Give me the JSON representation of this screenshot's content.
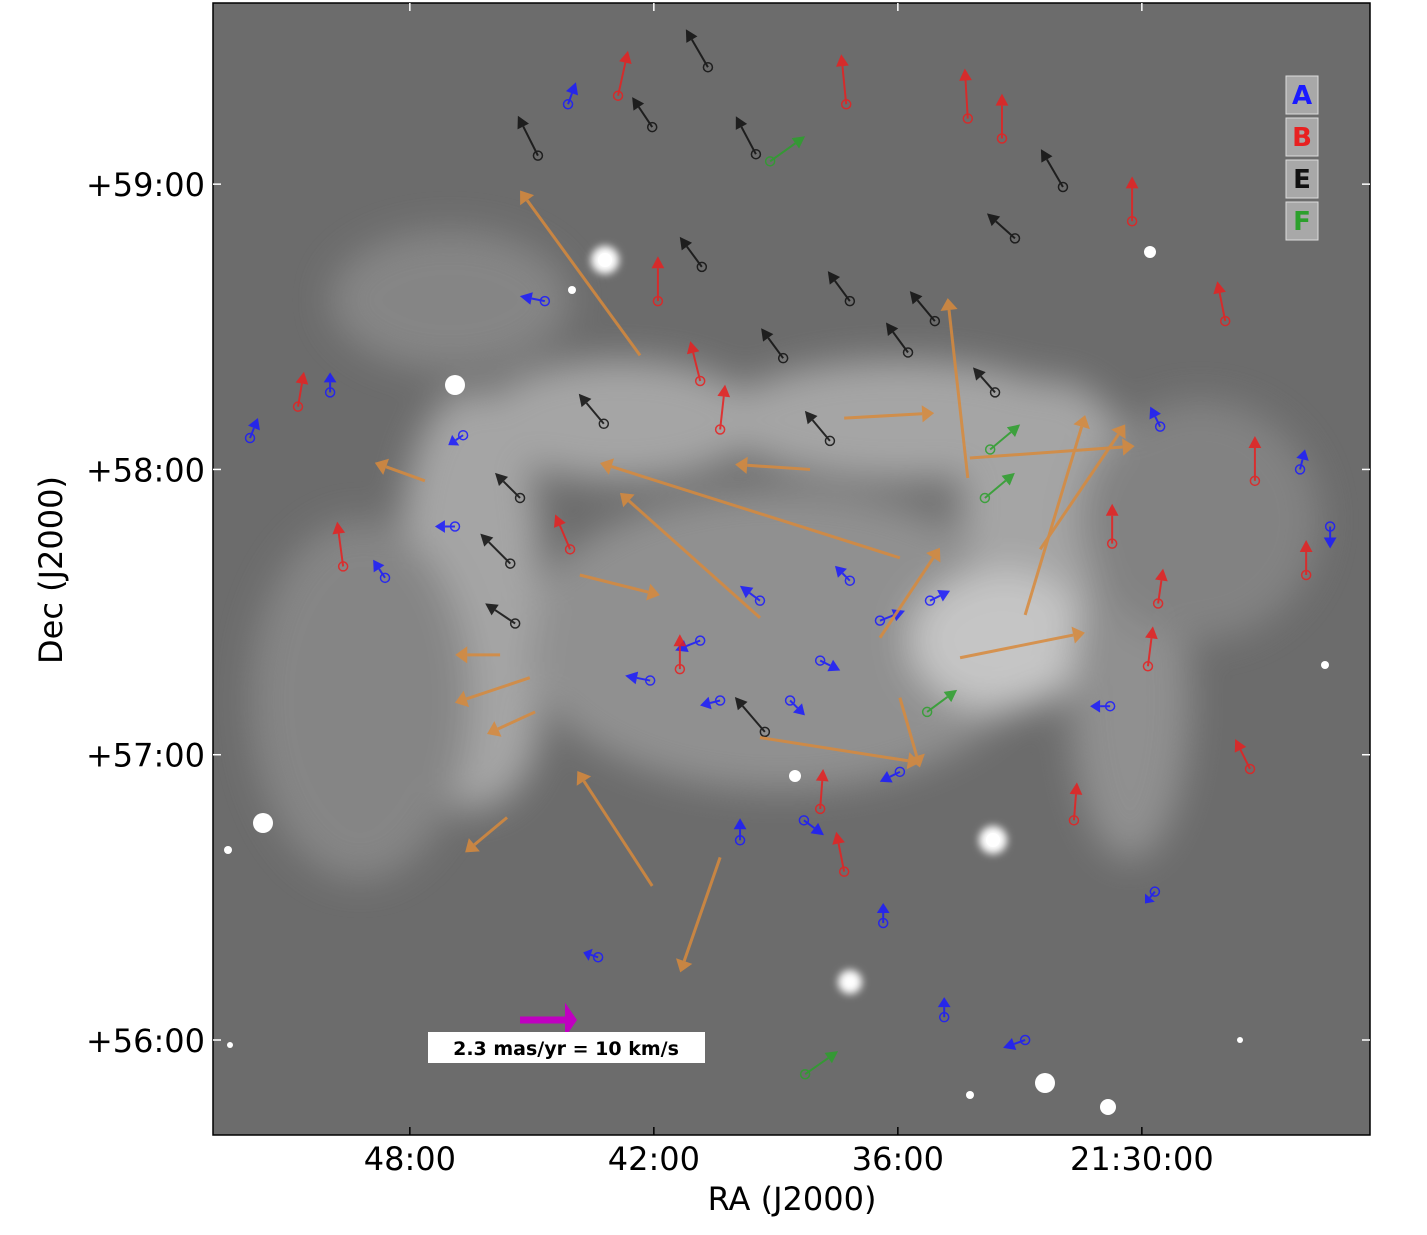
{
  "chart_data": {
    "type": "quiver",
    "xlabel": "RA (J2000)",
    "ylabel": "Dec (J2000)",
    "xlim": [
      52.84,
      24.39
    ],
    "ylim": [
      55.667,
      59.635
    ],
    "xticks": [
      {
        "value": 48,
        "label": "48:00"
      },
      {
        "value": 42,
        "label": "42:00"
      },
      {
        "value": 36,
        "label": "36:00"
      },
      {
        "value": 30,
        "label": "21:30:00"
      }
    ],
    "yticks": [
      {
        "value": 56,
        "label": "+56:00"
      },
      {
        "value": 57,
        "label": "+57:00"
      },
      {
        "value": 58,
        "label": "+58:00"
      },
      {
        "value": 59,
        "label": "+59:00"
      }
    ],
    "scale_arrow": {
      "value": 2.3,
      "label": "2.3 mas/yr = 10 km/s",
      "color": "#c000c0"
    },
    "series": [
      {
        "name": "A",
        "color": "#1a1aff",
        "tail_circle": true,
        "x": [
          51.93,
          49.96,
          44.11,
          44.68,
          46.69,
          48.61,
          46.89,
          43.37,
          34.86,
          32.87,
          40.86,
          39.39,
          37.91,
          36.44,
          42.09,
          35.95,
          30.78,
          29.55,
          26.11,
          25.37,
          29.68,
          39.88,
          38.31,
          36.36,
          40.37,
          37.18,
          35.21,
          38.65
        ],
        "y": [
          58.11,
          58.27,
          59.28,
          58.59,
          58.12,
          57.62,
          57.8,
          56.29,
          56.08,
          56.0,
          57.4,
          57.54,
          57.33,
          57.47,
          57.26,
          56.94,
          57.17,
          58.15,
          58.0,
          57.8,
          56.52,
          56.7,
          56.77,
          56.41,
          57.19,
          57.61,
          57.54,
          57.19
        ],
        "u": [
          0.32,
          0,
          0.32,
          -1.01,
          -0.6,
          -0.48,
          -0.81,
          -0.6,
          0,
          -0.89,
          -1.01,
          -0.81,
          0.81,
          1.01,
          -1.01,
          -0.81,
          -0.81,
          -0.4,
          0.2,
          0,
          -0.4,
          0,
          0.81,
          0,
          -0.81,
          -0.6,
          0.81,
          0.6
        ],
        "v": [
          0.81,
          0.81,
          0.89,
          0.2,
          -0.4,
          0.73,
          0,
          0.2,
          0.81,
          -0.32,
          -0.4,
          0.6,
          -0.4,
          0.4,
          0.2,
          -0.4,
          0,
          0.81,
          0.81,
          -0.89,
          -0.48,
          0.89,
          -0.6,
          0.81,
          -0.2,
          0.6,
          0.4,
          -0.6
        ]
      },
      {
        "name": "B",
        "color": "#e82020",
        "tail_circle": true,
        "x": [
          50.75,
          49.64,
          42.88,
          41.9,
          37.27,
          34.28,
          33.44,
          30.24,
          27.95,
          27.22,
          25.96,
          29.6,
          29.85,
          27.34,
          31.67,
          37.32,
          37.91,
          40.86,
          40.37,
          44.06,
          30.73,
          41.36
        ],
        "y": [
          58.22,
          57.66,
          59.31,
          58.59,
          59.28,
          59.23,
          59.16,
          58.87,
          58.52,
          57.96,
          57.63,
          57.53,
          57.31,
          56.95,
          56.77,
          56.59,
          56.81,
          58.31,
          58.14,
          57.72,
          57.74,
          57.3
        ],
        "u": [
          0.24,
          -0.24,
          0.4,
          0,
          -0.2,
          -0.12,
          0,
          0,
          -0.32,
          0,
          0,
          0.2,
          0.2,
          -0.6,
          0.12,
          -0.32,
          0.12,
          -0.4,
          0.2,
          -0.6,
          0,
          0
        ],
        "v": [
          1.41,
          1.81,
          1.81,
          1.81,
          2.02,
          2.02,
          1.81,
          1.81,
          1.61,
          1.81,
          1.41,
          1.41,
          1.61,
          1.21,
          1.53,
          1.61,
          1.61,
          1.61,
          1.81,
          1.41,
          1.61,
          1.41
        ]
      },
      {
        "name": "E",
        "color": "#111111",
        "tail_circle": true,
        "x": [
          40.67,
          44.85,
          42.04,
          39.49,
          31.94,
          33.12,
          40.82,
          38.82,
          35.75,
          43.23,
          37.67,
          33.61,
          45.41,
          45.53,
          45.29,
          39.27,
          35.09,
          37.18
        ],
        "y": [
          59.41,
          59.1,
          59.2,
          59.105,
          58.99,
          58.81,
          58.71,
          58.39,
          58.41,
          58.16,
          58.1,
          58.27,
          57.46,
          57.67,
          57.9,
          57.08,
          58.52,
          58.59
        ],
        "u": [
          -0.89,
          -0.81,
          -0.81,
          -0.81,
          -0.89,
          -1.13,
          -0.89,
          -0.89,
          -0.89,
          -1.01,
          -1.01,
          -0.89,
          -1.21,
          -1.21,
          -1.01,
          -1.21,
          -1.01,
          -0.89
        ],
        "v": [
          1.53,
          1.61,
          1.21,
          1.53,
          1.53,
          1.01,
          1.21,
          1.21,
          1.21,
          1.21,
          1.21,
          1.01,
          0.81,
          1.21,
          1.01,
          1.41,
          1.21,
          1.21
        ]
      },
      {
        "name": "F",
        "color": "#2ca02c",
        "tail_circle": true,
        "x": [
          39.14,
          35.28,
          38.28,
          33.86,
          33.73
        ],
        "y": [
          59.08,
          57.15,
          55.88,
          57.9,
          58.07
        ],
        "u": [
          1.41,
          1.21,
          1.33,
          1.21,
          1.21
        ],
        "v": [
          1.01,
          0.89,
          0.93,
          1.01,
          1.01
        ]
      },
      {
        "color": "#d88a3c",
        "tail_circle": false,
        "x": [
          42.04,
          42.34,
          47.63,
          45.78,
          45.05,
          44.92,
          45.61,
          40.37,
          39.39,
          35.95,
          32.87,
          34.47,
          32.5,
          34.23,
          35.95,
          38.16,
          39.39,
          37.32,
          36.44,
          34.28,
          43.82
        ],
        "y": [
          56.54,
          58.4,
          57.96,
          57.35,
          57.27,
          57.15,
          56.78,
          56.64,
          57.06,
          57.2,
          57.49,
          57.34,
          57.72,
          58.04,
          57.69,
          58.0,
          57.48,
          58.18,
          57.41,
          57.97,
          57.63
        ],
        "u": [
          -3.02,
          -4.84,
          -2.02,
          -1.81,
          -3.02,
          -1.94,
          -1.69,
          -1.61,
          6.45,
          0.81,
          2.42,
          5.04,
          3.43,
          6.65,
          -12.1,
          -3.02,
          -5.65,
          3.63,
          2.42,
          -0.81,
          3.23
        ],
        "v": [
          4.64,
          6.65,
          0.73,
          0,
          -1.01,
          -0.89,
          -1.41,
          -4.64,
          -1.01,
          -2.82,
          8.06,
          1.01,
          5.04,
          0.48,
          3.83,
          0.2,
          5.04,
          0.2,
          3.63,
          7.26,
          -0.81
        ]
      }
    ]
  }
}
